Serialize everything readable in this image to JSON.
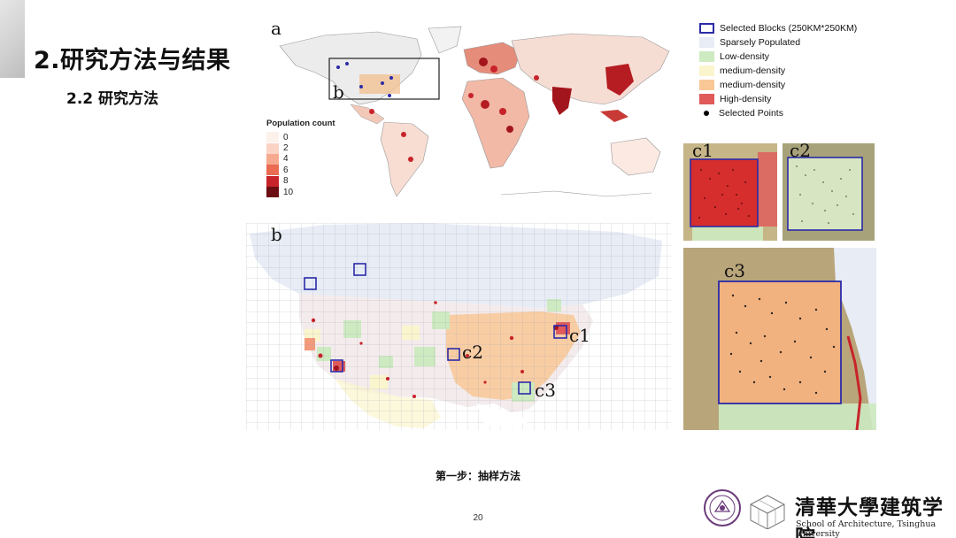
{
  "slide": {
    "title": "2.研究方法与结果",
    "subtitle": "2.2 研究方法",
    "caption": "第一步：抽样方法",
    "page_number": "20"
  },
  "panels": {
    "a": "a",
    "b": "b",
    "b_inset": "b",
    "c1": "c1",
    "c2": "c2",
    "c3": "c3"
  },
  "population_legend": {
    "title": "Population count",
    "items": [
      {
        "label": "0",
        "color": "#fdf1ec"
      },
      {
        "label": "2",
        "color": "#fbd3c4"
      },
      {
        "label": "4",
        "color": "#f6a98f"
      },
      {
        "label": "6",
        "color": "#ea6a52"
      },
      {
        "label": "8",
        "color": "#c8232a"
      },
      {
        "label": "10",
        "color": "#6b0d12"
      }
    ]
  },
  "legend": {
    "items": [
      {
        "label": "Selected Blocks (250KM*250KM)",
        "kind": "outline",
        "color": "#2b2ba8"
      },
      {
        "label": "Sparsely Populated",
        "kind": "fill",
        "color": "#e7ecf5"
      },
      {
        "label": "Low-density",
        "kind": "fill",
        "color": "#cdeac1"
      },
      {
        "label": "medium-density",
        "kind": "fill",
        "color": "#fbf5cd"
      },
      {
        "label": "medium-density",
        "kind": "fill",
        "color": "#f9c896"
      },
      {
        "label": "High-density",
        "kind": "fill",
        "color": "#e05a5a"
      },
      {
        "label": "Selected Points",
        "kind": "dot",
        "color": "#000000"
      }
    ]
  },
  "institution": {
    "name_cn": "清華大學建筑学院",
    "name_en": "School of Architecture, Tsinghua University"
  }
}
